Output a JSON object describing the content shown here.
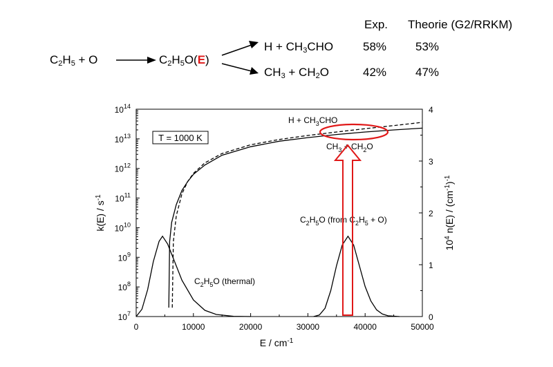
{
  "table_header": {
    "exp": "Exp.",
    "theory": "Theorie (G2/RRKM)"
  },
  "scheme": {
    "reactant": {
      "parts": [
        "C",
        "2",
        "H",
        "5",
        " + O"
      ]
    },
    "intermediate": {
      "parts": [
        "C",
        "2",
        "H",
        "5",
        "O(",
        "E",
        ")"
      ]
    },
    "channels": [
      {
        "parts": [
          "H + CH",
          "3",
          "CHO"
        ],
        "exp": "58%",
        "theory": "53%"
      },
      {
        "parts": [
          "CH",
          "3",
          " + CH",
          "2",
          "O"
        ],
        "exp": "42%",
        "theory": "47%"
      }
    ]
  },
  "colors": {
    "highlight": "#e01818",
    "curve": "#000000"
  },
  "chart_data": {
    "type": "line",
    "xlabel": "E / cm-1",
    "ylabel_left": "k(E) / s-1",
    "ylabel_right": "10^4 n(E) / (cm-1)-1",
    "xlim": [
      0,
      50000
    ],
    "ylim_left": [
      10000000.0,
      100000000000000.0
    ],
    "yscale_left": "log",
    "ylim_right": [
      0,
      4
    ],
    "grid": false,
    "x_ticks": [
      "0",
      "10000",
      "20000",
      "30000",
      "40000",
      "50000"
    ],
    "y_left_ticks": [
      {
        "base": "10",
        "exp": "7"
      },
      {
        "base": "10",
        "exp": "8"
      },
      {
        "base": "10",
        "exp": "9"
      },
      {
        "base": "10",
        "exp": "10"
      },
      {
        "base": "10",
        "exp": "11"
      },
      {
        "base": "10",
        "exp": "12"
      },
      {
        "base": "10",
        "exp": "13"
      },
      {
        "base": "10",
        "exp": "14"
      }
    ],
    "y_right_ticks": [
      "0",
      "1",
      "2",
      "3",
      "4"
    ],
    "annotation_box": "T = 1000 K",
    "series": [
      {
        "name": "H + CH3CHO",
        "axis": "left",
        "style": "dashed",
        "x": [
          6300,
          6500,
          7000,
          8000,
          9000,
          10000,
          12000,
          15000,
          20000,
          25000,
          30000,
          35000,
          40000,
          45000,
          50000
        ],
        "y": [
          20000000.0,
          3400000000.0,
          25000000000.0,
          140000000000.0,
          360000000000.0,
          680000000000.0,
          1550000000000.0,
          3200000000000.0,
          6300000000000.0,
          9500000000000.0,
          13000000000000.0,
          17000000000000.0,
          22000000000000.0,
          28000000000000.0,
          36000000000000.0
        ]
      },
      {
        "name": "CH3 + CH2O",
        "axis": "left",
        "style": "solid",
        "x": [
          5700,
          5850,
          6200,
          7000,
          8000,
          9000,
          10000,
          12000,
          15000,
          20000,
          25000,
          30000,
          35000,
          40000,
          45000,
          50000
        ],
        "y": [
          20000000.0,
          3400000000.0,
          15000000000.0,
          60000000000.0,
          180000000000.0,
          360000000000.0,
          630000000000.0,
          1300000000000.0,
          2800000000000.0,
          5400000000000.0,
          8300000000000.0,
          11000000000000.0,
          14000000000000.0,
          17000000000000.0,
          20000000000000.0,
          23000000000000.0
        ]
      },
      {
        "name": "C2H5O (thermal)",
        "axis": "right",
        "style": "solid",
        "x": [
          0,
          1000,
          2000,
          3000,
          4000,
          4600,
          5500,
          6500,
          8000,
          10000,
          12000,
          14000,
          17000,
          20000
        ],
        "y": [
          0,
          0.14,
          0.52,
          1.06,
          1.45,
          1.55,
          1.4,
          1.12,
          0.7,
          0.32,
          0.12,
          0.04,
          0.005,
          0
        ]
      },
      {
        "name": "C2H5O (from C2H5 + O)",
        "axis": "right",
        "style": "solid",
        "x": [
          31000,
          32000,
          33000,
          34000,
          35000,
          36000,
          37000,
          38000,
          39000,
          40000,
          41000,
          42000,
          43000,
          44000,
          46000
        ],
        "y": [
          0,
          0.03,
          0.16,
          0.5,
          0.98,
          1.38,
          1.55,
          1.38,
          0.98,
          0.58,
          0.3,
          0.13,
          0.05,
          0.015,
          0
        ]
      }
    ],
    "labels": [
      {
        "parts": [
          "H + CH",
          "3",
          "CHO"
        ]
      },
      {
        "parts": [
          "CH",
          "3",
          " + CH",
          "2",
          "O"
        ]
      },
      {
        "parts": [
          "C",
          "2",
          "H",
          "5",
          "O (thermal)"
        ]
      },
      {
        "parts": [
          "C",
          "2",
          "H",
          "5",
          "O  (from C",
          "2",
          "H",
          "5",
          " + O)"
        ]
      }
    ]
  }
}
